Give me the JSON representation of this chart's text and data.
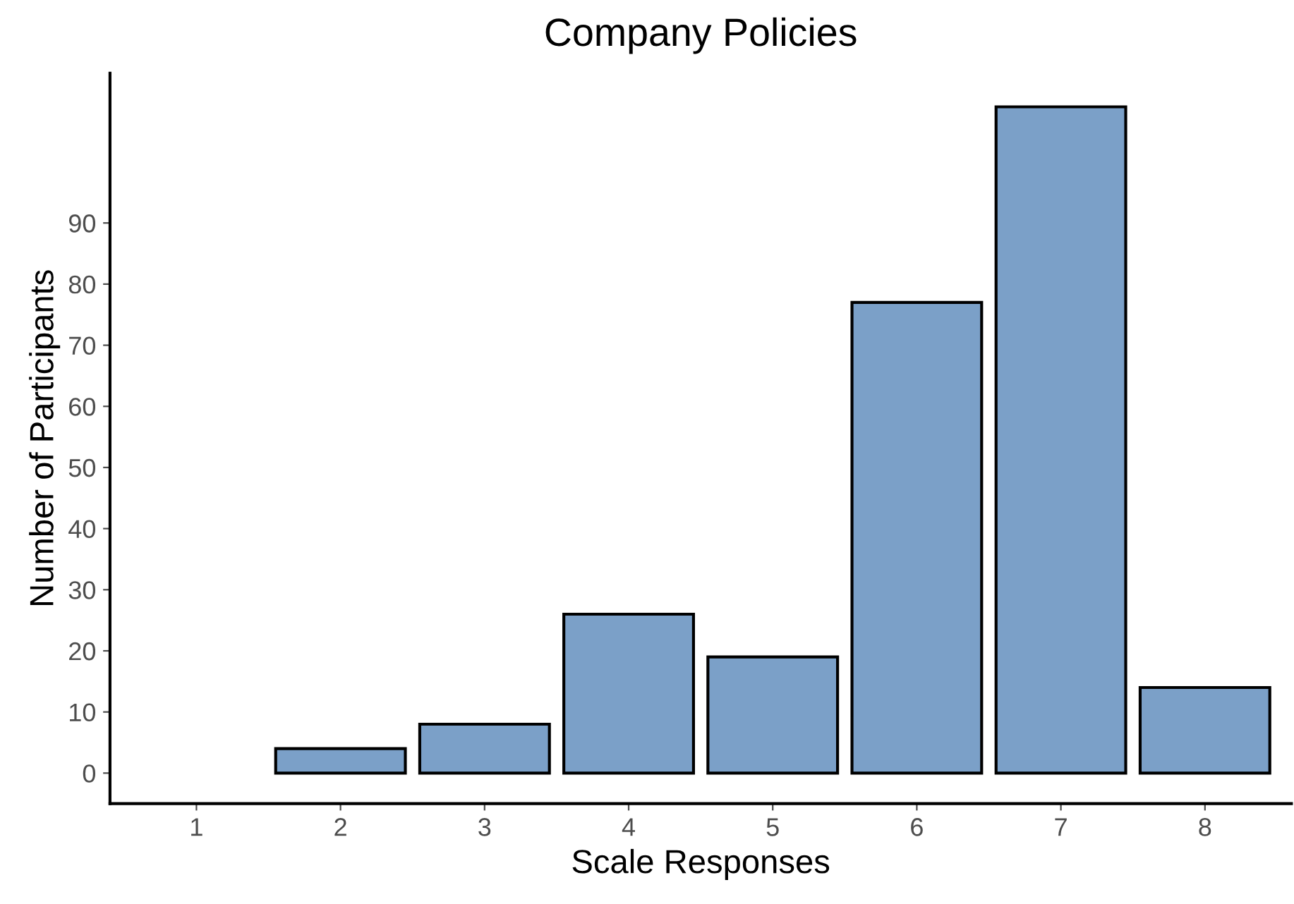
{
  "chart_data": {
    "type": "bar",
    "title": "Company Policies",
    "xlabel": "Scale Responses",
    "ylabel": "Number of Participants",
    "categories": [
      "1",
      "2",
      "3",
      "4",
      "5",
      "6",
      "7",
      "8"
    ],
    "values": [
      null,
      4,
      8,
      26,
      19,
      77,
      109,
      14
    ],
    "color": "#7ba0c8",
    "ylim": [
      -5,
      114.5
    ],
    "yticks": [
      0,
      10,
      20,
      30,
      40,
      50,
      60,
      70,
      80,
      90
    ],
    "grid": false,
    "legend": false
  }
}
